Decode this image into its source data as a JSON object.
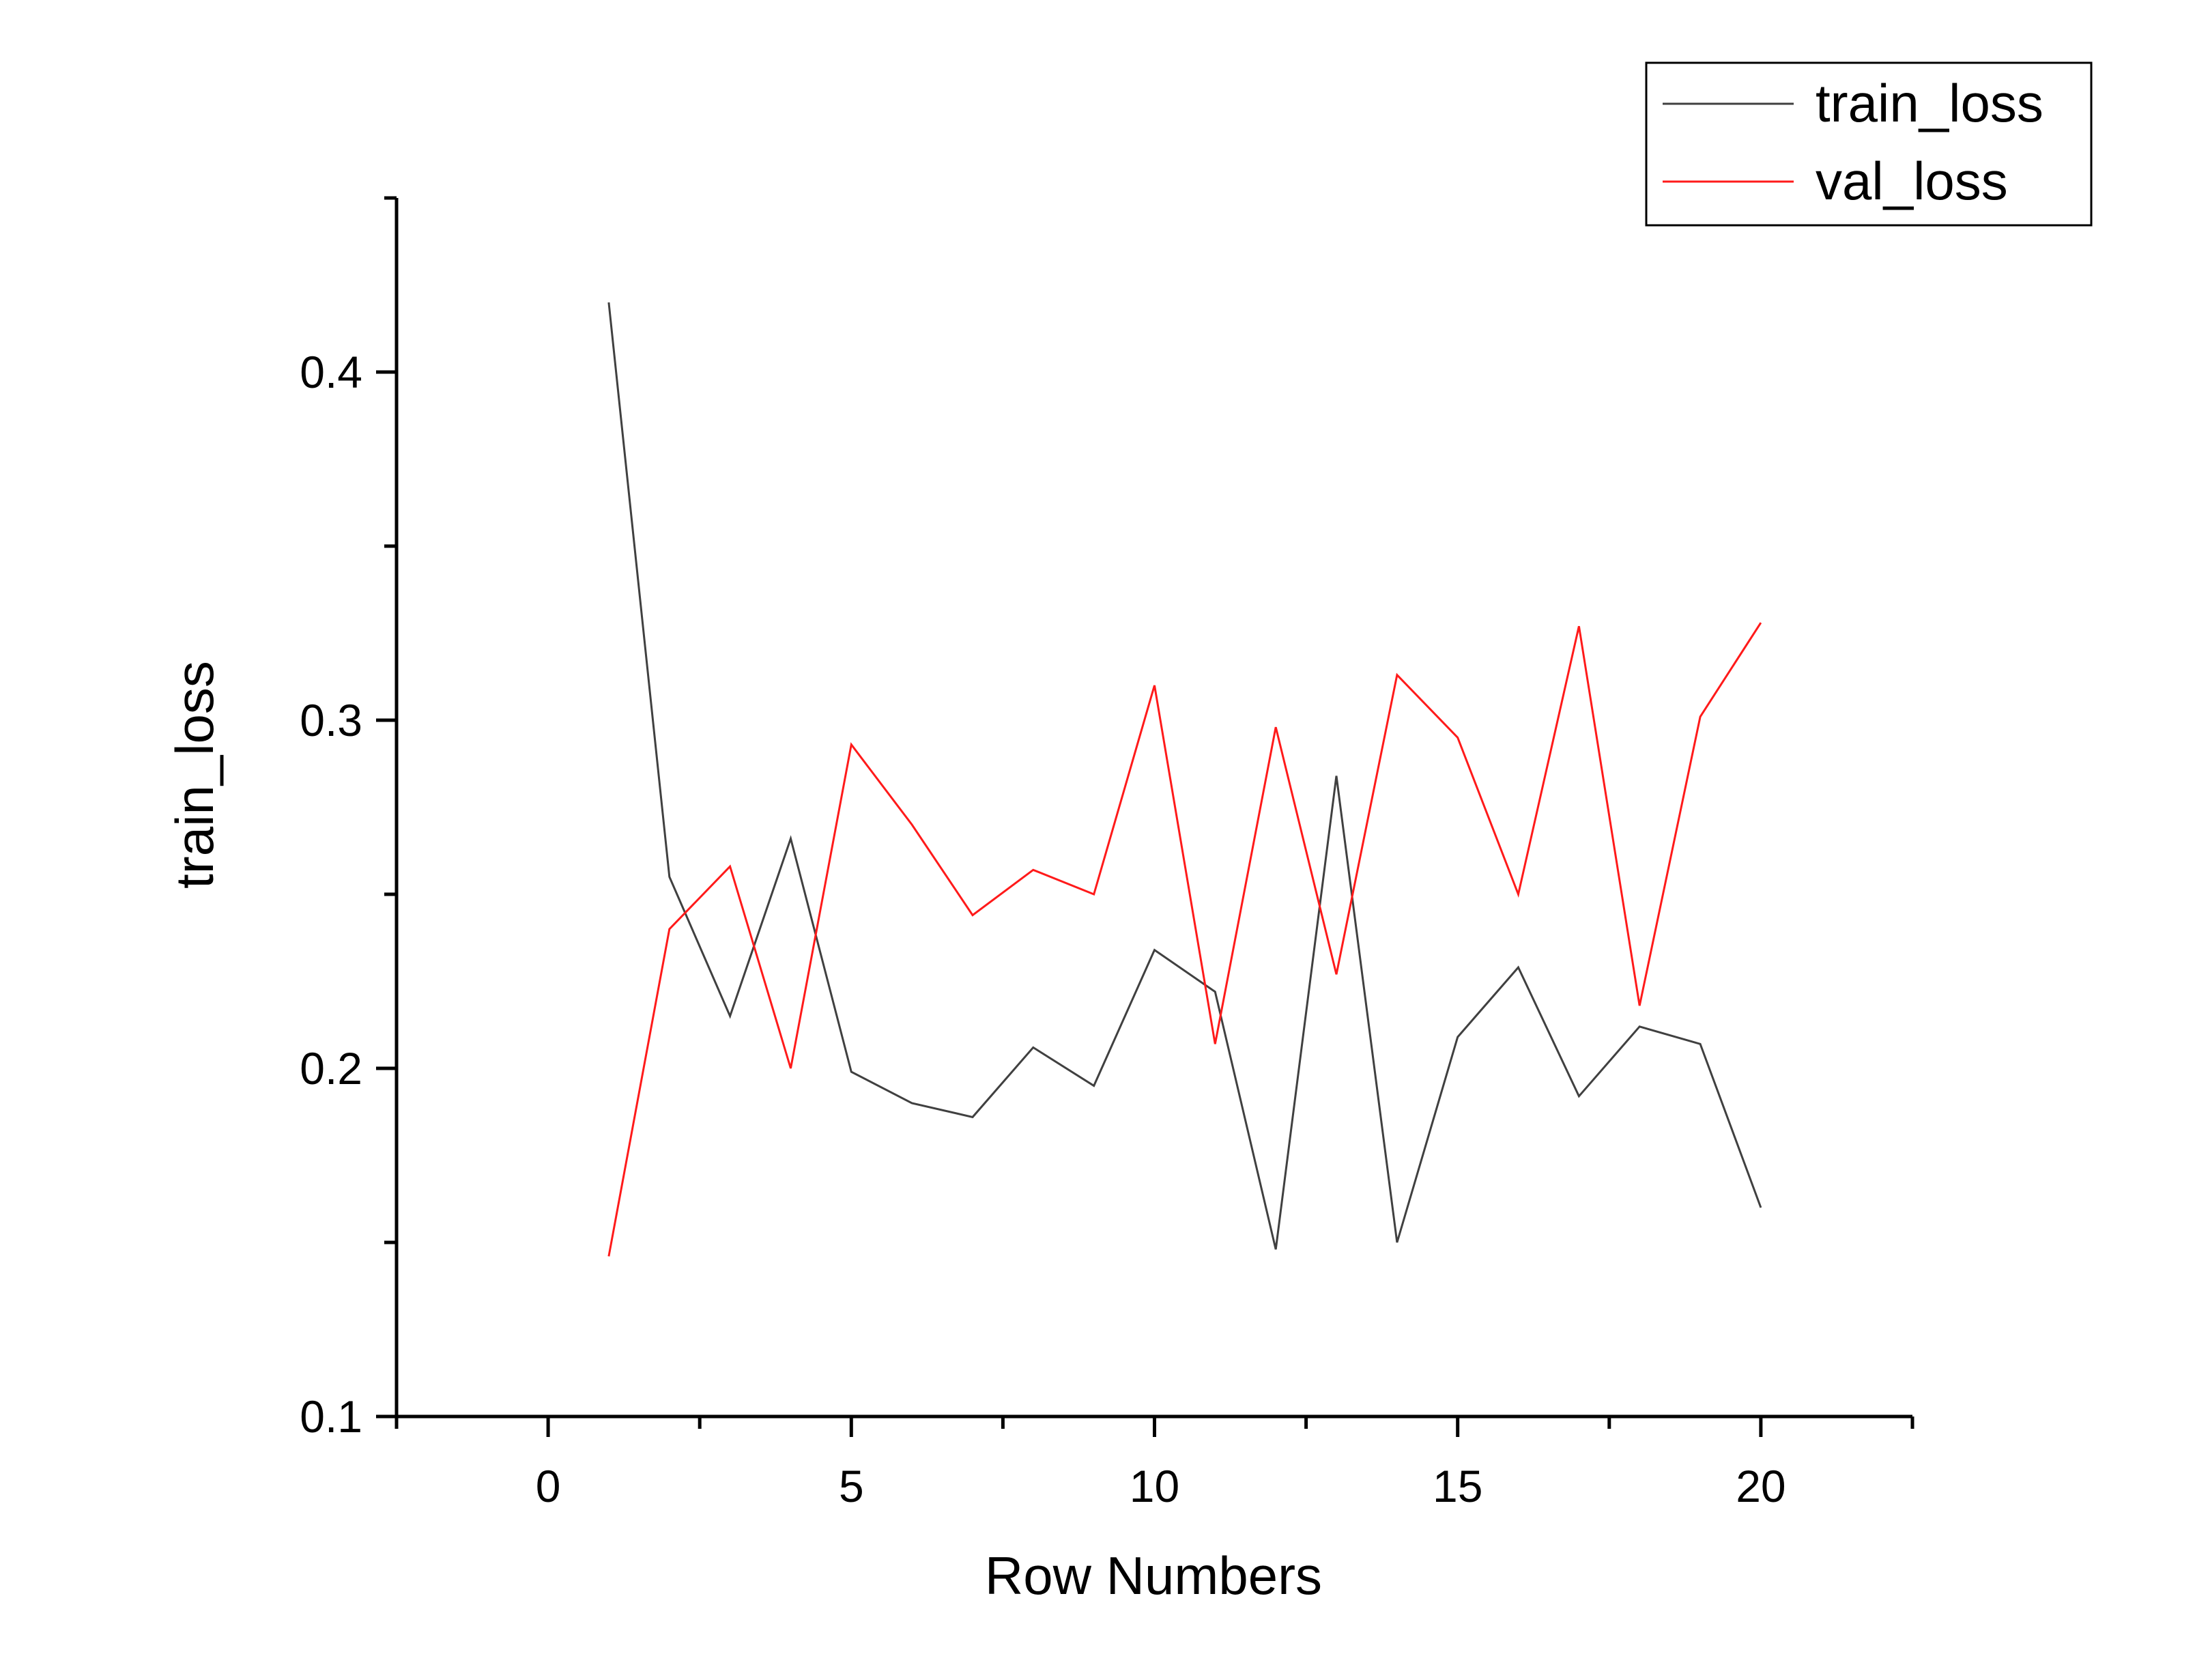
{
  "chart_data": {
    "type": "line",
    "title": "",
    "xlabel": "Row Numbers",
    "ylabel": "train_loss",
    "xlim": [
      -2.5,
      22.5
    ],
    "ylim": [
      0.1,
      0.45
    ],
    "x_ticks": [
      0,
      5,
      10,
      15,
      20
    ],
    "x_tick_labels": [
      "0",
      "5",
      "10",
      "15",
      "20"
    ],
    "y_ticks": [
      0.1,
      0.2,
      0.3,
      0.4
    ],
    "y_tick_labels": [
      "0.1",
      "0.2",
      "0.3",
      "0.4"
    ],
    "grid": false,
    "legend_position": "top-right",
    "x": [
      1,
      2,
      3,
      4,
      5,
      6,
      7,
      8,
      9,
      10,
      11,
      12,
      13,
      14,
      15,
      16,
      17,
      18,
      19,
      20
    ],
    "series": [
      {
        "name": "train_loss",
        "color": "#404040",
        "values": [
          0.42,
          0.255,
          0.215,
          0.266,
          0.199,
          0.19,
          0.186,
          0.206,
          0.195,
          0.234,
          0.222,
          0.148,
          0.284,
          0.15,
          0.209,
          0.229,
          0.192,
          0.212,
          0.207,
          0.16
        ]
      },
      {
        "name": "val_loss",
        "color": "#ff1a1a",
        "values": [
          0.146,
          0.24,
          0.258,
          0.2,
          0.293,
          0.27,
          0.244,
          0.257,
          0.25,
          0.31,
          0.207,
          0.298,
          0.227,
          0.313,
          0.295,
          0.25,
          0.327,
          0.218,
          0.301,
          0.328
        ]
      }
    ]
  }
}
